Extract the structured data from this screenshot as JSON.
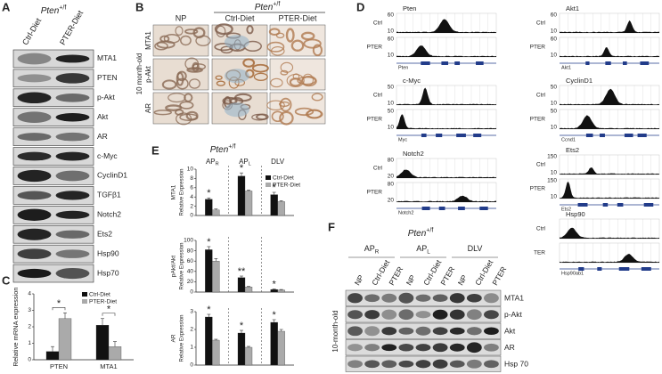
{
  "panels": {
    "A": {
      "label": "A",
      "title": {
        "gene": "Pten",
        "genotype": "+/f"
      },
      "lanes": [
        "Ctrl-Diet",
        "PTER-Diet"
      ],
      "rows": [
        "MTA1",
        "PTEN",
        "p-Akt",
        "Akt",
        "AR",
        "c-Myc",
        "CyclinD1",
        "TGFβ1",
        "Notch2",
        "Ets2",
        "Hsp90",
        "Hsp70"
      ]
    },
    "B": {
      "label": "B",
      "title": {
        "gene": "Pten",
        "genotype": "+/f"
      },
      "columns": [
        "NP",
        "Ctrl-Diet",
        "PTER-Diet"
      ],
      "rows": [
        "MTA1",
        "p-Akt",
        "AR"
      ],
      "age": "10  month-old"
    },
    "C": {
      "label": "C"
    },
    "D": {
      "label": "D",
      "blocks": [
        {
          "gene": "Pten",
          "locus": "Pten",
          "tracks": [
            {
              "name": "Ctrl",
              "top": "60",
              "bottom": "10"
            },
            {
              "name": "PTER",
              "top": "60",
              "bottom": "10"
            }
          ]
        },
        {
          "gene": "c-Myc",
          "locus": "Myc",
          "tracks": [
            {
              "name": "Ctrl",
              "top": "50",
              "bottom": "10"
            },
            {
              "name": "PTER",
              "top": "50",
              "bottom": "10"
            }
          ]
        },
        {
          "gene": "Notch2",
          "locus": "Notch2",
          "tracks": [
            {
              "name": "Ctrl",
              "top": "80",
              "bottom": "20"
            },
            {
              "name": "PTER",
              "top": "80",
              "bottom": "20"
            }
          ]
        },
        {
          "gene": "Akt1",
          "locus": "Akt1",
          "tracks": [
            {
              "name": "Ctrl",
              "top": "60",
              "bottom": "10"
            },
            {
              "name": "PTER",
              "top": "60",
              "bottom": "10"
            }
          ]
        },
        {
          "gene": "CyclinD1",
          "locus": "Ccnd1",
          "tracks": [
            {
              "name": "Ctrl",
              "top": "50",
              "bottom": "10"
            },
            {
              "name": "PTER",
              "top": "50",
              "bottom": "10"
            }
          ]
        },
        {
          "gene": "Ets2",
          "locus": "Ets2",
          "tracks": [
            {
              "name": "Ctrl",
              "top": "150",
              "bottom": "10"
            },
            {
              "name": "PTER",
              "top": "150",
              "bottom": "10"
            }
          ]
        },
        {
          "gene": "Hsp90",
          "locus": "Hsp90ab1",
          "tracks": [
            {
              "name": "Ctrl"
            },
            {
              "name": "TER"
            }
          ]
        }
      ]
    },
    "E": {
      "label": "E",
      "title": {
        "gene": "Pten",
        "genotype": "+/f"
      },
      "groups": [
        {
          "text": "AP",
          "sub": "R"
        },
        {
          "text": "AP",
          "sub": "L"
        },
        {
          "text": "DLV"
        }
      ]
    },
    "F": {
      "label": "F",
      "title": {
        "gene": "Pten",
        "genotype": "+/f"
      },
      "groups": [
        {
          "text": "AP",
          "sub": "R"
        },
        {
          "text": "AP",
          "sub": "L"
        },
        {
          "text": "DLV"
        }
      ],
      "lanes": [
        "NP",
        "Ctrl-Diet",
        "PTER",
        "NP",
        "Ctrl-Diet",
        "PTER",
        "NP",
        "Ctrl-Diet",
        "PTER"
      ],
      "rows": [
        "MTA1",
        "p-Akt",
        "Akt",
        "AR",
        "Hsp 70"
      ],
      "age": "10-month-old"
    }
  },
  "chart_data": [
    {
      "type": "bar",
      "ylabel": "Relative mRNA expression",
      "categories": [
        "PTEN",
        "MTA1"
      ],
      "series": [
        {
          "name": "Ctrl-Diet",
          "color": "#111111",
          "values": [
            0.5,
            2.1
          ],
          "errors": [
            0.3,
            0.4
          ]
        },
        {
          "name": "PTER-Diet",
          "color": "#aaaaaa",
          "values": [
            2.5,
            0.8
          ],
          "errors": [
            0.35,
            0.3
          ]
        }
      ],
      "ylim": [
        0,
        4
      ],
      "yticks": [
        0,
        1,
        2,
        3,
        4
      ],
      "annotations": [
        "*",
        "*"
      ]
    },
    {
      "type": "bar",
      "title": "MTA1",
      "ylabel": "Relative Expression",
      "series": [
        {
          "name": "Ctrl-Diet",
          "color": "#111111",
          "values": [
            3.5,
            8.5,
            4.5
          ],
          "errors": [
            0.3,
            0.7,
            0.5
          ]
        },
        {
          "name": "PTER-Diet",
          "color": "#aaaaaa",
          "values": [
            1.2,
            5.3,
            3.0
          ],
          "errors": [
            0.2,
            0.2,
            0.2
          ]
        }
      ],
      "ylim": [
        0,
        10
      ],
      "yticks": [
        0,
        2,
        4,
        6,
        8,
        10
      ],
      "annotations": [
        "*",
        "*",
        "*"
      ]
    },
    {
      "type": "bar",
      "title": "pAkt/Akt",
      "ylabel": "Relative Expression",
      "series": [
        {
          "color": "#111111",
          "values": [
            82,
            28,
            5
          ],
          "errors": [
            6,
            3,
            1
          ]
        },
        {
          "color": "#aaaaaa",
          "values": [
            60,
            10,
            4
          ],
          "errors": [
            5,
            1,
            1
          ]
        }
      ],
      "ylim": [
        0,
        100
      ],
      "yticks": [
        0,
        20,
        40,
        60,
        80,
        100
      ],
      "annotations": [
        "*",
        "**",
        "*"
      ]
    },
    {
      "type": "bar",
      "title": "AR",
      "ylabel": "Relative Expression",
      "series": [
        {
          "color": "#111111",
          "values": [
            2.7,
            1.8,
            2.4
          ],
          "errors": [
            0.15,
            0.15,
            0.15
          ]
        },
        {
          "color": "#aaaaaa",
          "values": [
            1.4,
            1.0,
            1.9
          ],
          "errors": [
            0.05,
            0.05,
            0.1
          ]
        }
      ],
      "ylim": [
        0,
        3
      ],
      "yticks": [
        0,
        1,
        2,
        3
      ],
      "annotations": [
        "*",
        "*",
        "*"
      ]
    }
  ]
}
